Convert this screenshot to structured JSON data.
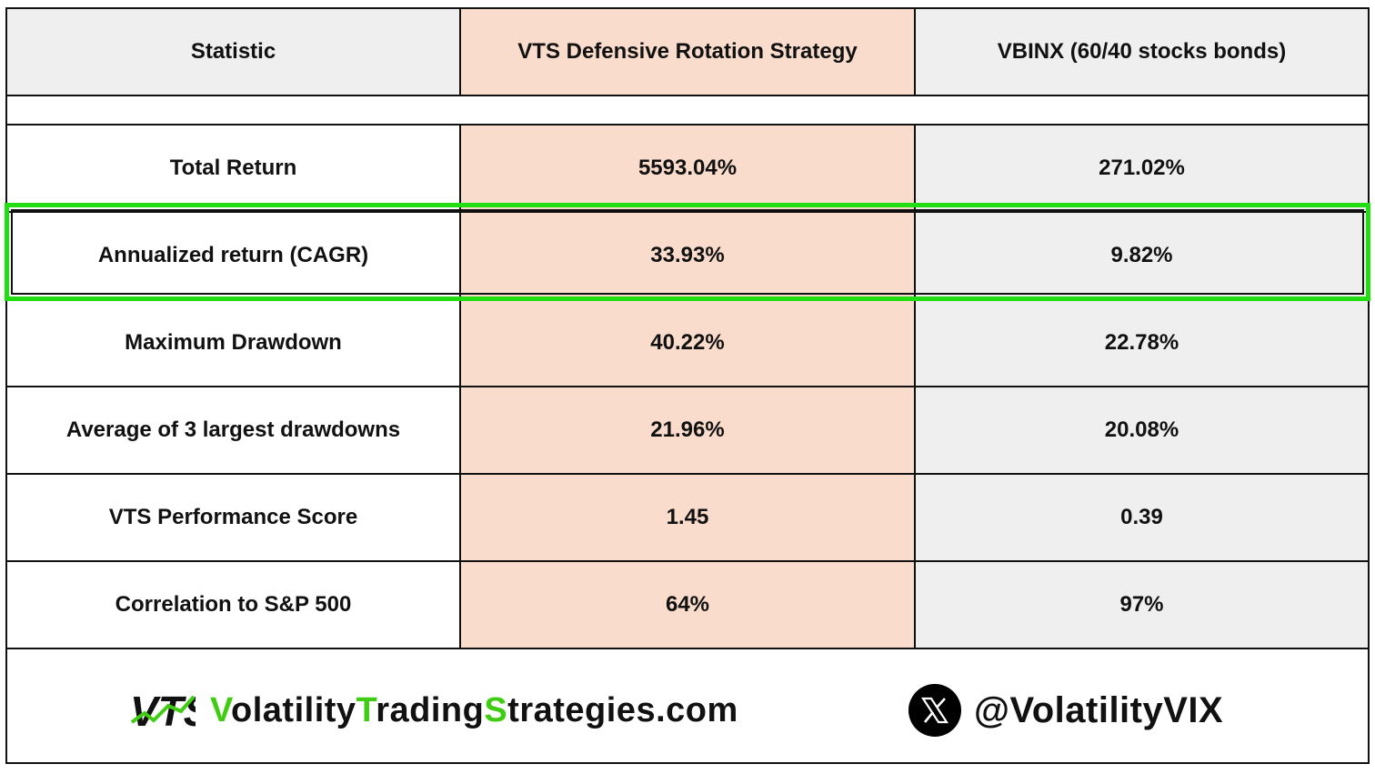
{
  "table": {
    "headers": [
      "Statistic",
      "VTS Defensive Rotation Strategy",
      "VBINX  (60/40 stocks bonds)"
    ],
    "rows": [
      {
        "statistic": "Total Return",
        "vts": "5593.04%",
        "vbinx": "271.02%"
      },
      {
        "statistic": "Annualized return  (CAGR)",
        "vts": "33.93%",
        "vbinx": "9.82%"
      },
      {
        "statistic": "Maximum Drawdown",
        "vts": "40.22%",
        "vbinx": "22.78%"
      },
      {
        "statistic": "Average of 3 largest drawdowns",
        "vts": "21.96%",
        "vbinx": "20.08%"
      },
      {
        "statistic": "VTS Performance Score",
        "vts": "1.45",
        "vbinx": "0.39"
      },
      {
        "statistic": "Correlation to S&P 500",
        "vts": "64%",
        "vbinx": "97%"
      }
    ],
    "highlighted_row_index": 1
  },
  "footer": {
    "logo_text": "VTS",
    "website_parts": [
      {
        "text": "V",
        "accent": true
      },
      {
        "text": "olatility",
        "accent": false
      },
      {
        "text": "T",
        "accent": true
      },
      {
        "text": "rading",
        "accent": false
      },
      {
        "text": "S",
        "accent": true
      },
      {
        "text": "trategies.com",
        "accent": false
      }
    ],
    "x_icon": "x-logo-icon",
    "handle": "@VolatilityVIX"
  },
  "colors": {
    "strategy_column": "#f9dccc",
    "benchmark_column": "#efefef",
    "highlight": "#22dd11",
    "brand_accent": "#3fcc12"
  }
}
